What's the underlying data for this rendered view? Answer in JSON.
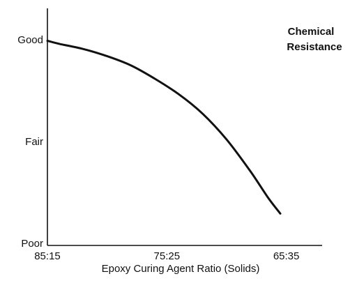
{
  "chart_data": {
    "type": "line",
    "title_lines": [
      "Chemical",
      "Resistance"
    ],
    "xlabel": "Epoxy Curing Agent Ratio (Solids)",
    "x_ticks": [
      "85:15",
      "75:25",
      "65:35"
    ],
    "y_ticks": [
      "Poor",
      "Fair",
      "Good"
    ],
    "xlim": [
      85,
      62
    ],
    "ylim": [
      0,
      2
    ],
    "grid": false,
    "series": [
      {
        "x": [
          85,
          84,
          82,
          80,
          78,
          76,
          74,
          72,
          70,
          68,
          66.5,
          65.5
        ],
        "y": [
          1.99,
          1.96,
          1.91,
          1.84,
          1.75,
          1.62,
          1.47,
          1.28,
          1.03,
          0.72,
          0.46,
          0.31
        ]
      }
    ]
  }
}
